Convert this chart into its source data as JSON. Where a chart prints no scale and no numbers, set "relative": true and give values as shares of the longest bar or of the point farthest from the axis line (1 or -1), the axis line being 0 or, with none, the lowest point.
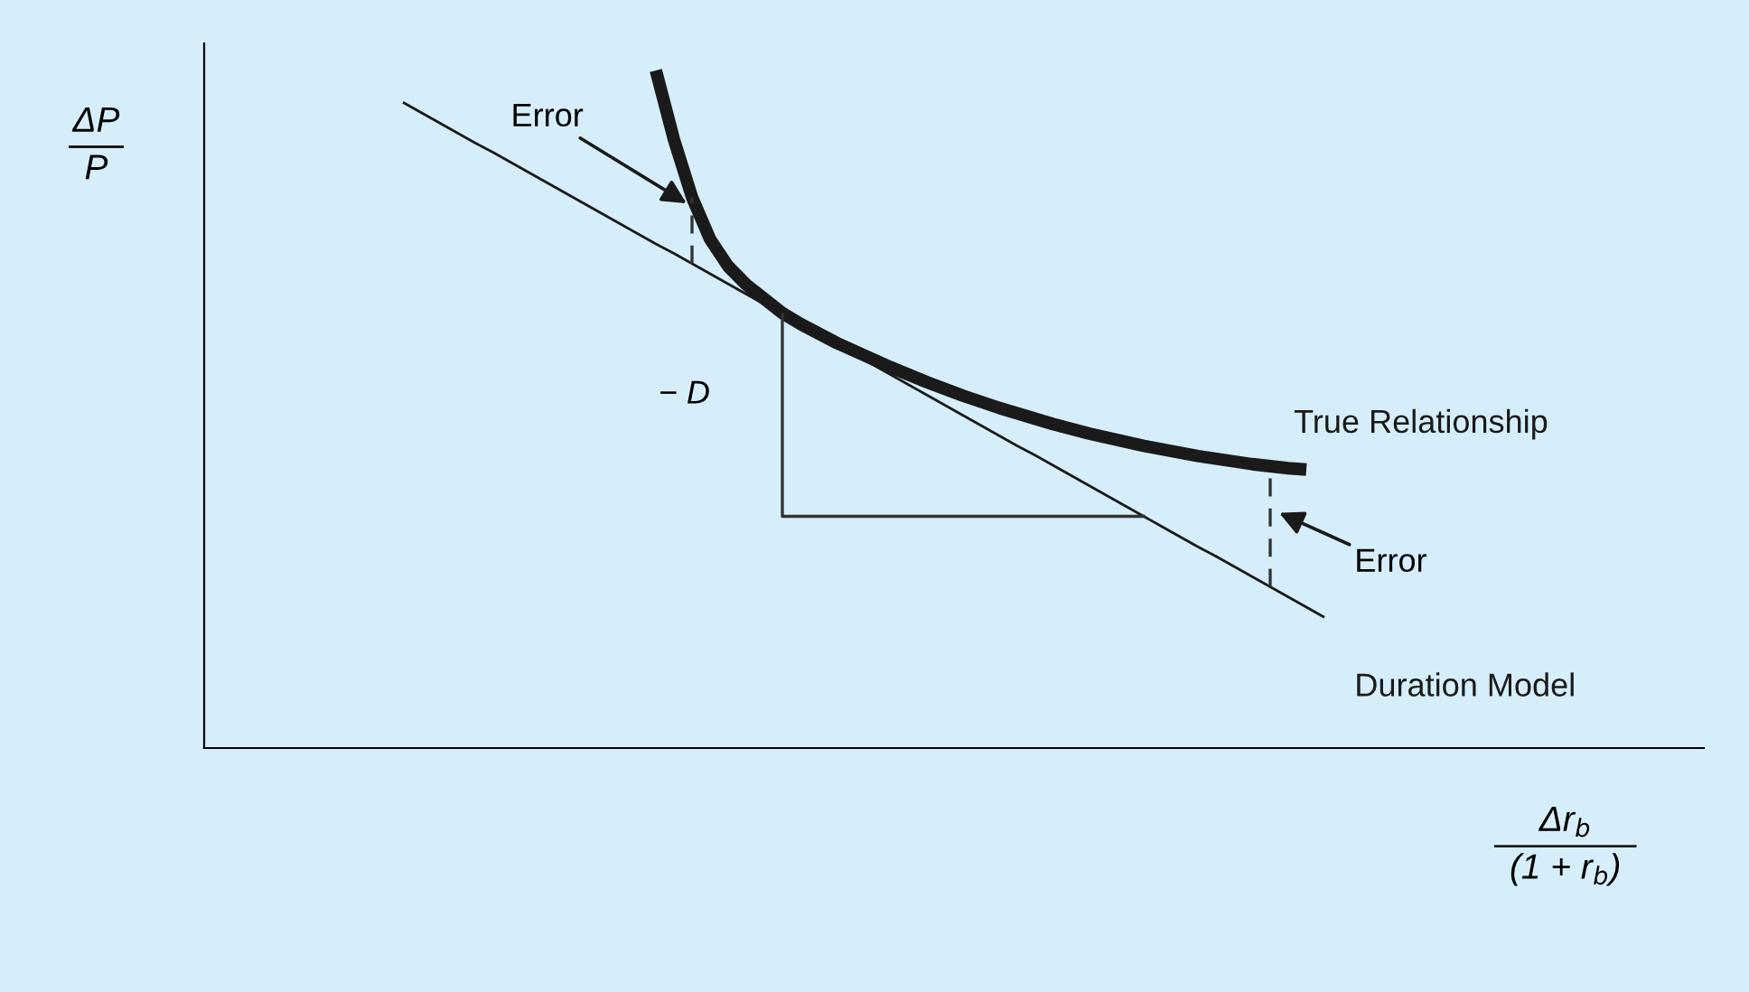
{
  "chart_data": {
    "type": "line",
    "relative": true,
    "xlabel": "Δr$_{b}$\n(1 + r$_{b}$)",
    "ylabel": "ΔP\nP",
    "categories": [
      null,
      null,
      null,
      null,
      null,
      null,
      null,
      null,
      null,
      null,
      null,
      null,
      null,
      null,
      null,
      null,
      null,
      null,
      null,
      null,
      null,
      null,
      null,
      null,
      null,
      null,
      null,
      null,
      null,
      null,
      null,
      null,
      null,
      null,
      null,
      null,
      null,
      null,
      null,
      null,
      null,
      null,
      null,
      null,
      null,
      null,
      null,
      null,
      null,
      null,
      null,
      null,
      null,
      null,
      null,
      null,
      null,
      null,
      null,
      null,
      null,
      null,
      null,
      null,
      null,
      null,
      null,
      null,
      null,
      null,
      null,
      null,
      null,
      null,
      null,
      null,
      null,
      null,
      null,
      null,
      null,
      null,
      null,
      null
    ],
    "series": [
      {
        "name": "True Relationship",
        "color": "#1a1a1a",
        "values": [
          null,
          null,
          null,
          null,
          null,
          null,
          null,
          null,
          null,
          null,
          null,
          null,
          null,
          null,
          null,
          null,
          null,
          null,
          null,
          null,
          null,
          null,
          null,
          null,
          null,
          1.0,
          0.898,
          0.813,
          0.751,
          0.711,
          0.684,
          0.663,
          0.642,
          0.626,
          0.612,
          0.598,
          0.586,
          0.574,
          0.562,
          0.551,
          0.54,
          0.53,
          0.52,
          0.511,
          0.502,
          0.494,
          0.486,
          0.478,
          0.471,
          0.464,
          0.458,
          0.452,
          0.446,
          0.441,
          0.436,
          0.431,
          0.427,
          0.423,
          0.419,
          0.416,
          0.413,
          0.411,
          null,
          null,
          null,
          null,
          null,
          null,
          null,
          null,
          null,
          null,
          null,
          null,
          null,
          null,
          null,
          null,
          null,
          null,
          null,
          null,
          null,
          null
        ]
      },
      {
        "name": "Duration Model",
        "color": "#1a1a1a",
        "values": [
          null,
          null,
          null,
          null,
          null,
          null,
          null,
          null,
          null,
          null,
          null,
          0.953,
          0.938,
          0.923,
          0.908,
          0.893,
          0.879,
          0.864,
          0.849,
          0.834,
          0.819,
          0.804,
          0.789,
          0.774,
          0.759,
          0.744,
          0.73,
          0.715,
          0.7,
          0.685,
          0.67,
          0.655,
          0.64,
          0.625,
          0.61,
          0.595,
          0.581,
          0.566,
          0.551,
          0.536,
          0.521,
          0.506,
          0.491,
          0.476,
          0.461,
          0.446,
          0.432,
          0.417,
          0.402,
          0.387,
          0.372,
          0.357,
          0.342,
          0.327,
          0.312,
          0.297,
          0.283,
          0.268,
          0.253,
          0.238,
          0.223,
          0.208,
          0.193,
          null,
          null,
          null,
          null,
          null,
          null,
          null,
          null,
          null,
          null,
          null,
          null,
          null,
          null,
          null,
          null,
          null,
          null,
          null,
          null,
          null
        ]
      }
    ],
    "annotations": [
      "Error",
      "Error",
      "− D"
    ]
  }
}
